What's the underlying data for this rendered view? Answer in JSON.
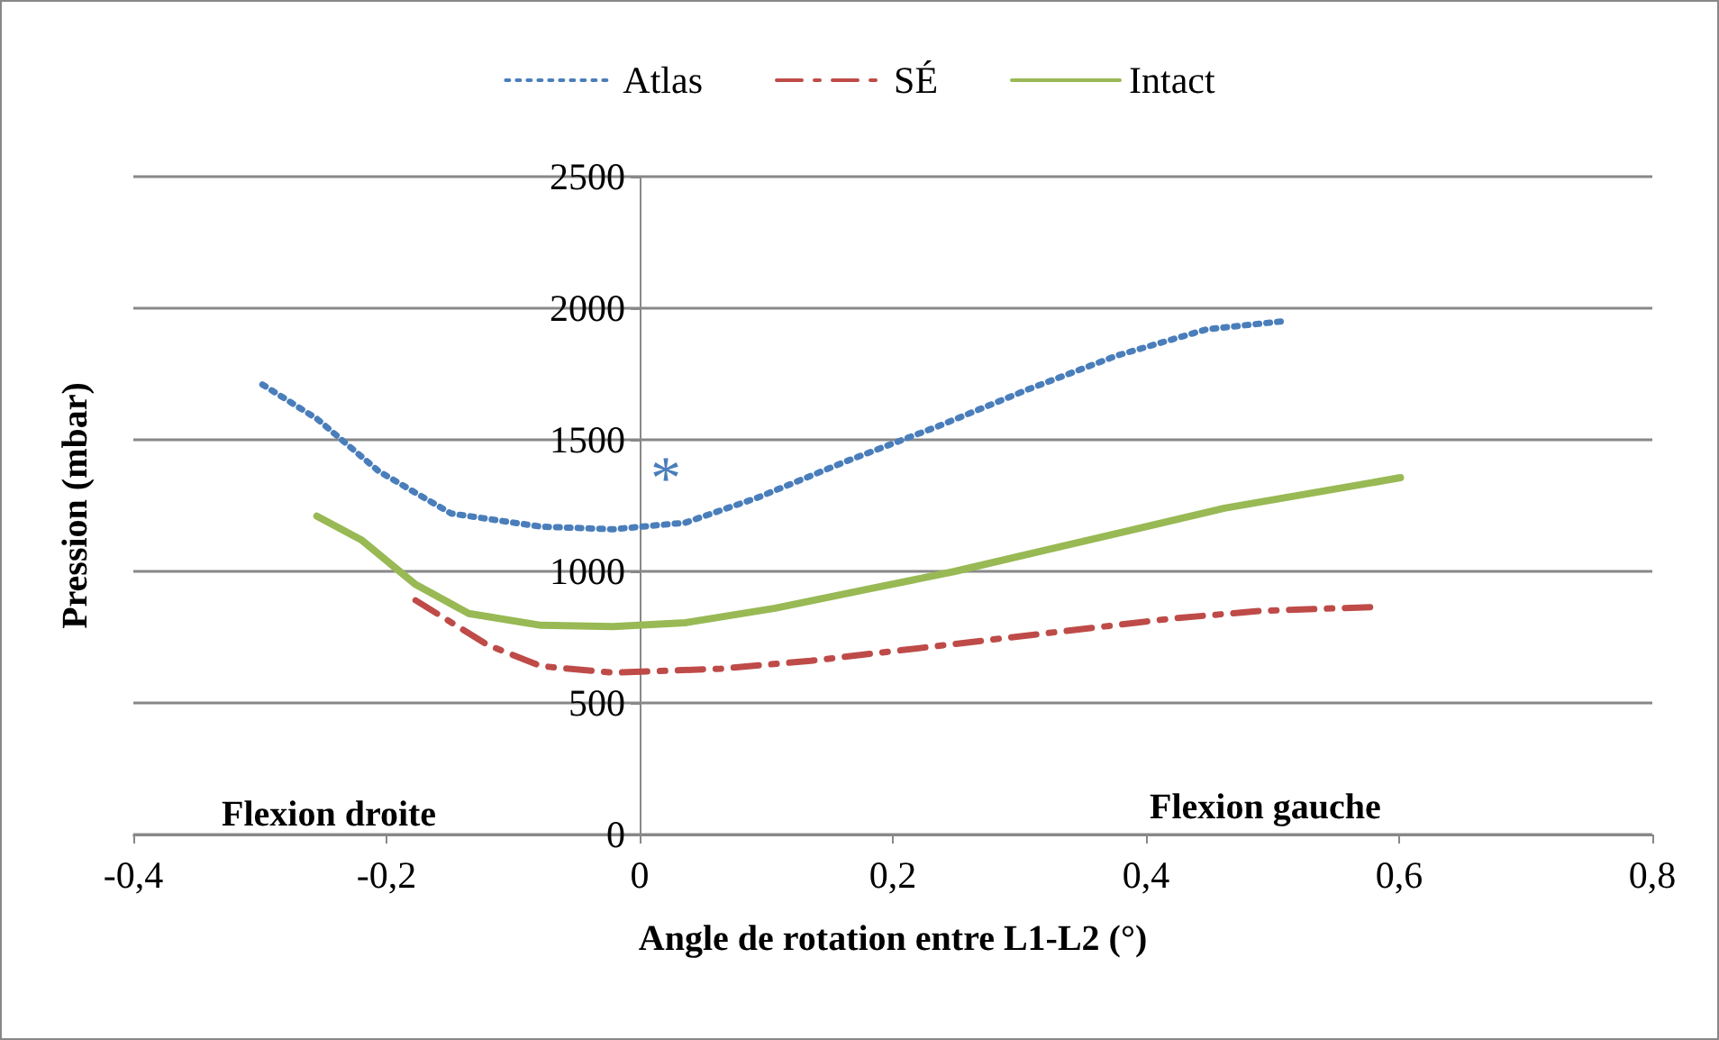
{
  "chart_data": {
    "type": "line",
    "xlabel": "Angle de rotation entre L1-L2 (°)",
    "ylabel": "Pression (mbar)",
    "xlim": [
      -0.4,
      0.8
    ],
    "xticks": [
      {
        "value": -0.4,
        "label": "-0,4"
      },
      {
        "value": -0.2,
        "label": "-0,2"
      },
      {
        "value": 0,
        "label": "0"
      },
      {
        "value": 0.2,
        "label": "0,2"
      },
      {
        "value": 0.4,
        "label": "0,4"
      },
      {
        "value": 0.6,
        "label": "0,6"
      },
      {
        "value": 0.8,
        "label": "0,8"
      }
    ],
    "ylim": [
      0,
      2500
    ],
    "yticks": [
      0,
      500,
      1000,
      1500,
      2000,
      2500
    ],
    "grid": "y",
    "legend": "top",
    "marker": "none",
    "series": [
      {
        "name": "Atlas",
        "color": "#4a7ebb",
        "line_style": "dotted",
        "x": [
          -0.298,
          -0.255,
          -0.206,
          -0.149,
          -0.078,
          -0.021,
          0.036,
          0.093,
          0.164,
          0.235,
          0.306,
          0.377,
          0.448,
          0.507
        ],
        "values": [
          1710,
          1580,
          1380,
          1220,
          1170,
          1160,
          1185,
          1280,
          1420,
          1550,
          1690,
          1820,
          1920,
          1950
        ]
      },
      {
        "name": "SÉ",
        "color": "#be4b48",
        "line_style": "dashed",
        "x": [
          -0.177,
          -0.12,
          -0.078,
          -0.021,
          0.064,
          0.135,
          0.206,
          0.277,
          0.348,
          0.419,
          0.49,
          0.583
        ],
        "values": [
          890,
          720,
          640,
          615,
          630,
          660,
          700,
          740,
          780,
          820,
          850,
          865
        ]
      },
      {
        "name": "Intact",
        "color": "#98b954",
        "line_style": "solid",
        "x": [
          -0.255,
          -0.22,
          -0.177,
          -0.135,
          -0.078,
          -0.021,
          0.036,
          0.107,
          0.178,
          0.249,
          0.32,
          0.391,
          0.462,
          0.601
        ],
        "values": [
          1210,
          1120,
          950,
          840,
          795,
          790,
          805,
          860,
          930,
          1000,
          1080,
          1160,
          1240,
          1356
        ]
      }
    ],
    "annotations": [
      "*",
      "Flexion droite",
      "Flexion gauche"
    ]
  }
}
